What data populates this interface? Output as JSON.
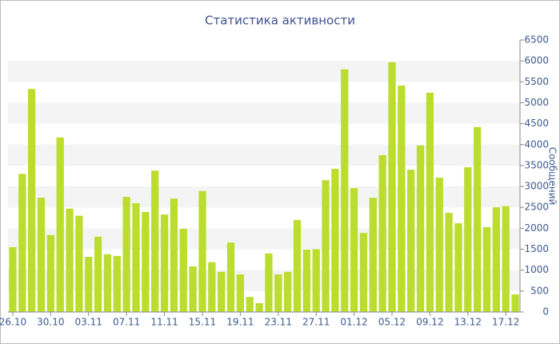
{
  "chart_data": {
    "type": "bar",
    "title": "Статистика активности",
    "y_label": "Сообщений",
    "categories": [
      "26.10",
      null,
      null,
      null,
      "30.10",
      null,
      null,
      null,
      "03.11",
      null,
      null,
      null,
      "07.11",
      null,
      null,
      null,
      "11.11",
      null,
      null,
      null,
      "15.11",
      null,
      null,
      null,
      "19.11",
      null,
      null,
      null,
      "23.11",
      null,
      null,
      null,
      "27.11",
      null,
      null,
      null,
      "01.12",
      null,
      null,
      null,
      "05.12",
      null,
      null,
      null,
      "09.12",
      null,
      null,
      null,
      "13.12",
      null,
      null,
      null,
      "17.12",
      null
    ],
    "values": [
      1550,
      3300,
      5330,
      2730,
      1840,
      4170,
      2470,
      2300,
      1320,
      1800,
      1380,
      1340,
      2750,
      2600,
      2390,
      3380,
      2330,
      2710,
      1990,
      1090,
      2890,
      1190,
      960,
      1660,
      900,
      360,
      210,
      1400,
      900,
      960,
      2200,
      1490,
      1500,
      3150,
      3420,
      5800,
      2960,
      1890,
      2730,
      3750,
      5970,
      5410,
      3400,
      3980,
      5240,
      3210,
      2370,
      2120,
      3460,
      4420,
      2030,
      2500,
      2530,
      420
    ],
    "color": "#bcdc2e",
    "ylim": [
      0,
      6500
    ],
    "yticks": [
      0,
      500,
      1000,
      1500,
      2000,
      2500,
      3000,
      3500,
      4000,
      4500,
      5000,
      5500,
      6000,
      6500
    ],
    "grid": "bands",
    "y_axis_side": "right"
  }
}
